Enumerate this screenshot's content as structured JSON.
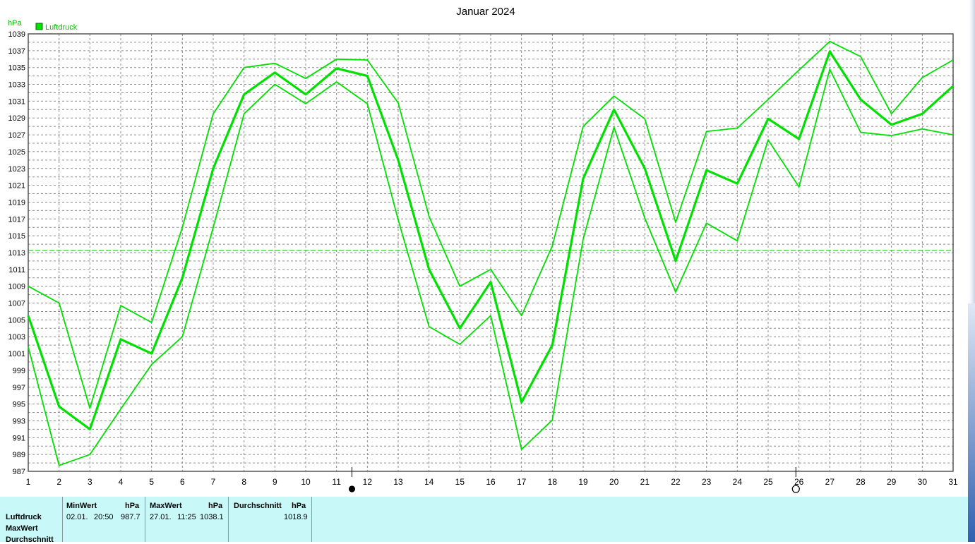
{
  "title": "Januar 2024",
  "unit": "hPa",
  "legend": {
    "label": "Luftdruck",
    "color": "#00e000"
  },
  "chart_data": {
    "type": "line",
    "title": "Januar 2024",
    "ylabel": "hPa",
    "x": [
      1,
      2,
      3,
      4,
      5,
      6,
      7,
      8,
      9,
      10,
      11,
      12,
      13,
      14,
      15,
      16,
      17,
      18,
      19,
      20,
      21,
      22,
      23,
      24,
      25,
      26,
      27,
      28,
      29,
      30,
      31
    ],
    "xlim": [
      1,
      31
    ],
    "ylim": [
      987,
      1039
    ],
    "y_ticks": [
      987,
      989,
      991,
      993,
      995,
      997,
      999,
      1001,
      1003,
      1005,
      1007,
      1009,
      1011,
      1013,
      1015,
      1017,
      1019,
      1021,
      1023,
      1025,
      1027,
      1029,
      1031,
      1033,
      1035,
      1037,
      1039
    ],
    "reference_line": 1013.25,
    "grid": true,
    "legend_position": "top-left",
    "series": [
      {
        "name": "Luftdruck",
        "role": "mean",
        "color": "#00e000",
        "values": [
          1005.5,
          994.7,
          992.0,
          1002.7,
          1001.0,
          1010.0,
          1023.0,
          1031.8,
          1034.4,
          1031.8,
          1034.9,
          1034.0,
          1024.0,
          1011.0,
          1004.0,
          1009.5,
          995.2,
          1002.0,
          1021.8,
          1030.0,
          1023.0,
          1012.0,
          1022.8,
          1021.2,
          1028.9,
          1026.5,
          1036.9,
          1031.2,
          1028.2,
          1029.5,
          1032.8
        ]
      },
      {
        "name": "",
        "role": "max",
        "color": "#00e000",
        "values": [
          1009.0,
          1007.0,
          994.5,
          1006.7,
          1004.7,
          1016.0,
          1029.5,
          1035.0,
          1035.5,
          1033.7,
          1036.0,
          1035.9,
          1030.8,
          1017.3,
          1009.0,
          1011.0,
          1005.5,
          1013.8,
          1028.0,
          1031.6,
          1028.9,
          1016.6,
          1027.4,
          1027.8,
          1031.2,
          1034.7,
          1038.1,
          1036.3,
          1029.5,
          1033.8,
          1035.9
        ]
      },
      {
        "name": "",
        "role": "min",
        "color": "#00e000",
        "values": [
          1001.8,
          987.7,
          989.0,
          994.4,
          999.7,
          1003.0,
          1016.0,
          1029.5,
          1033.0,
          1030.7,
          1033.3,
          1030.7,
          1016.9,
          1004.2,
          1002.1,
          1005.5,
          989.6,
          993.1,
          1014.6,
          1027.9,
          1017.1,
          1008.3,
          1016.5,
          1014.4,
          1026.4,
          1020.8,
          1034.8,
          1027.3,
          1026.9,
          1027.7,
          1027.0
        ]
      }
    ],
    "markers": [
      {
        "type": "full-moon",
        "day": 11.5
      },
      {
        "type": "new-moon",
        "day": 25.9
      }
    ]
  },
  "stats": {
    "row_labels": [
      "Luftdruck",
      "MaxWert",
      "Durchschnitt"
    ],
    "min": {
      "header": "MinWert",
      "unit": "hPa",
      "date": "02.01.",
      "time": "20:50",
      "value": "987.7"
    },
    "max": {
      "header": "MaxWert",
      "unit": "hPa",
      "date": "27.01.",
      "time": "11:25",
      "value": "1038.1"
    },
    "avg": {
      "header": "Durchschnitt",
      "unit": "hPa",
      "value": "1018.9"
    }
  }
}
